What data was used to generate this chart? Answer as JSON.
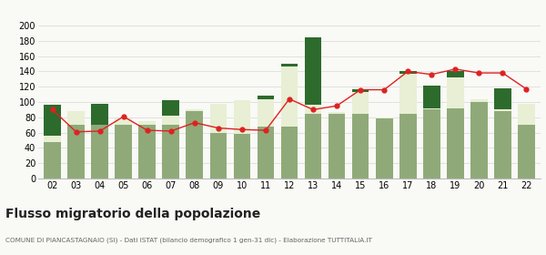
{
  "years": [
    "02",
    "03",
    "04",
    "05",
    "06",
    "07",
    "08",
    "09",
    "10",
    "11",
    "12",
    "13",
    "14",
    "15",
    "16",
    "17",
    "18",
    "19",
    "20",
    "21",
    "22"
  ],
  "iscritti_altri_comuni": [
    48,
    70,
    70,
    70,
    70,
    70,
    88,
    60,
    58,
    68,
    68,
    85,
    85,
    85,
    78,
    85,
    90,
    92,
    100,
    88,
    70
  ],
  "iscritti_estero": [
    8,
    18,
    0,
    8,
    5,
    12,
    2,
    38,
    44,
    36,
    78,
    12,
    2,
    28,
    2,
    52,
    2,
    40,
    4,
    2,
    28
  ],
  "iscritti_altri": [
    40,
    0,
    28,
    0,
    0,
    20,
    0,
    0,
    0,
    4,
    4,
    88,
    0,
    4,
    0,
    4,
    30,
    8,
    0,
    28,
    0
  ],
  "cancellati": [
    90,
    61,
    62,
    81,
    63,
    62,
    73,
    66,
    64,
    63,
    104,
    90,
    95,
    116,
    116,
    140,
    136,
    143,
    138,
    138,
    117
  ],
  "color_altri_comuni": "#8faa78",
  "color_estero": "#e8efd4",
  "color_altri": "#2d6b2d",
  "color_cancellati": "#dd2222",
  "title": "Flusso migratorio della popolazione",
  "subtitle": "COMUNE DI PIANCASTAGNAIO (SI) - Dati ISTAT (bilancio demografico 1 gen-31 dic) - Elaborazione TUTTITALIA.IT",
  "ylim": [
    0,
    200
  ],
  "yticks": [
    0,
    20,
    40,
    60,
    80,
    100,
    120,
    140,
    160,
    180,
    200
  ],
  "bg_color": "#f9f9f6",
  "grid_color": "#dddddd"
}
